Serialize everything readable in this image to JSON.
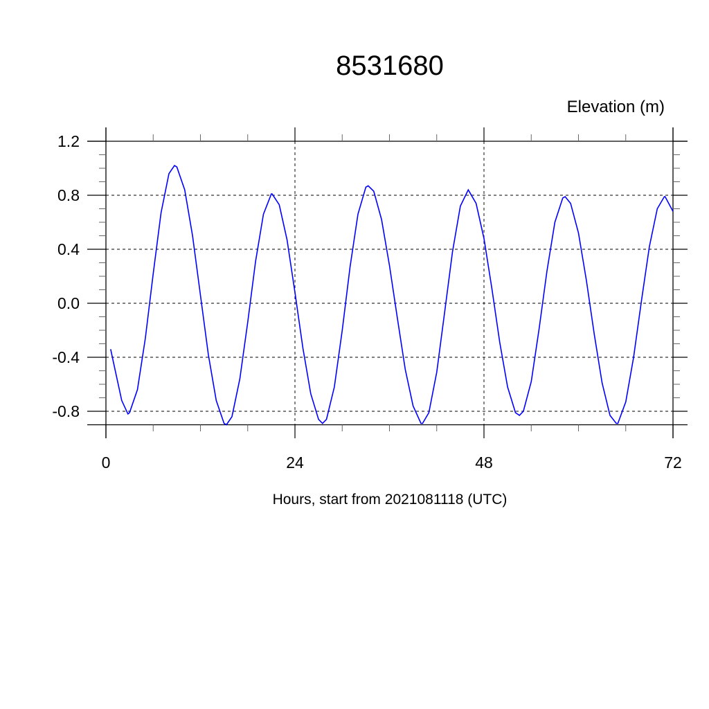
{
  "chart_data": {
    "type": "line",
    "title": "8531680",
    "ylabel": "Elevation (m)",
    "xlabel": "Hours, start from 2021081118 (UTC)",
    "xlim": [
      0,
      72
    ],
    "ylim": [
      -0.9,
      1.2
    ],
    "x_ticks": [
      0,
      24,
      48,
      72
    ],
    "x_tick_labels": [
      "0",
      "24",
      "48",
      "72"
    ],
    "y_ticks": [
      1.2,
      0.8,
      0.4,
      0.0,
      -0.4,
      -0.8
    ],
    "y_tick_labels": [
      "1.2",
      "0.8",
      "0.4",
      "0.0",
      "-0.4",
      "-0.8"
    ],
    "grid": true,
    "line_color": "#0000ff",
    "series": [
      {
        "x": [
          0.6,
          1,
          2,
          2.8,
          3,
          4,
          5,
          6,
          7,
          8,
          8.7,
          9,
          10,
          11,
          12,
          13,
          14,
          15,
          15.3,
          16,
          17,
          18,
          19,
          20,
          21,
          21.1,
          22,
          23,
          24,
          25,
          26,
          27,
          27.5,
          28,
          29,
          30,
          31,
          32,
          33,
          33.3,
          34,
          35,
          36,
          37,
          38,
          39,
          40,
          40.2,
          41,
          42,
          43,
          44,
          45,
          46,
          47,
          48,
          49,
          50,
          51,
          52,
          52.5,
          53,
          54,
          55,
          56,
          57,
          58,
          58.3,
          59,
          60,
          61,
          62,
          63,
          64,
          64.8,
          65,
          66,
          67,
          68,
          69,
          70,
          70.9,
          71,
          72
        ],
        "y": [
          -0.34,
          -0.45,
          -0.72,
          -0.82,
          -0.81,
          -0.64,
          -0.26,
          0.22,
          0.67,
          0.96,
          1.02,
          1.01,
          0.84,
          0.5,
          0.06,
          -0.38,
          -0.72,
          -0.89,
          -0.9,
          -0.84,
          -0.56,
          -0.14,
          0.31,
          0.66,
          0.81,
          0.81,
          0.73,
          0.47,
          0.08,
          -0.33,
          -0.67,
          -0.86,
          -0.89,
          -0.86,
          -0.62,
          -0.2,
          0.27,
          0.66,
          0.86,
          0.87,
          0.83,
          0.62,
          0.28,
          -0.11,
          -0.49,
          -0.76,
          -0.89,
          -0.89,
          -0.81,
          -0.51,
          -0.07,
          0.38,
          0.72,
          0.84,
          0.74,
          0.48,
          0.11,
          -0.29,
          -0.62,
          -0.81,
          -0.83,
          -0.8,
          -0.58,
          -0.19,
          0.24,
          0.6,
          0.78,
          0.79,
          0.74,
          0.52,
          0.17,
          -0.23,
          -0.59,
          -0.83,
          -0.89,
          -0.89,
          -0.73,
          -0.4,
          0.02,
          0.42,
          0.7,
          0.79,
          0.79,
          0.68
        ]
      }
    ]
  }
}
